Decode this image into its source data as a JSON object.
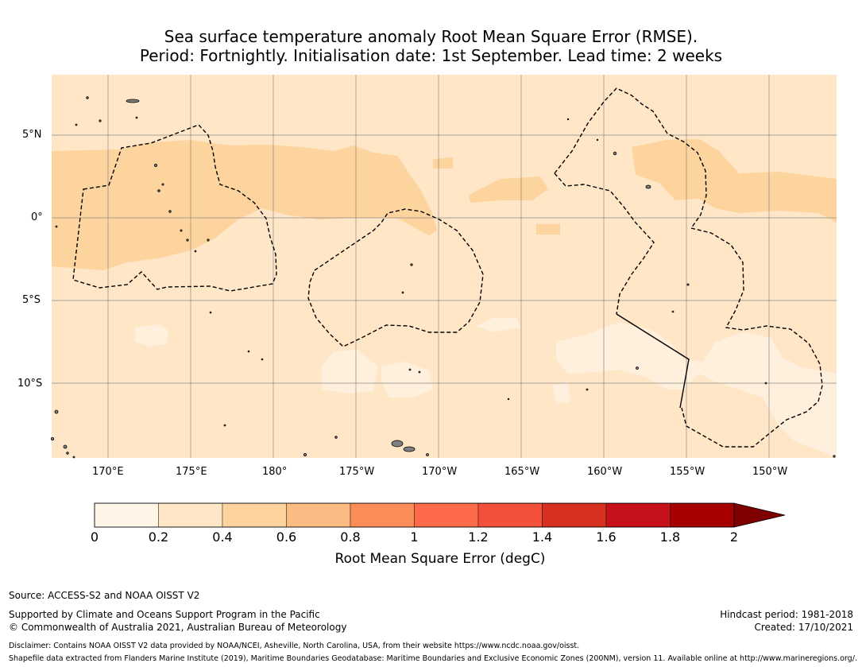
{
  "title": {
    "line1": "Sea surface temperature anomaly Root Mean Square Error (RMSE).",
    "line2": "Period: Fortnightly. Initialisation date: 1st September. Lead time: 2 weeks"
  },
  "map": {
    "lon_labels": [
      "170°E",
      "175°E",
      "180°",
      "175°W",
      "170°W",
      "165°W",
      "160°W",
      "155°W",
      "150°W"
    ],
    "lat_labels": [
      "5°N",
      "0°",
      "5°S",
      "10°S"
    ],
    "colors": {
      "bin_0_0.2": "#fff0de",
      "bin_0.2_0.4": "#fee6c6",
      "bin_0.4_0.6": "#fdd49e",
      "land": "#808080",
      "grid": "#8a8a8a"
    }
  },
  "colorbar": {
    "label": "Root Mean Square Error (degC)",
    "ticks": [
      "0",
      "0.2",
      "0.4",
      "0.6",
      "0.8",
      "1",
      "1.2",
      "1.4",
      "1.6",
      "1.8",
      "2"
    ],
    "colors": [
      "#fff5e6",
      "#fee6c6",
      "#fdd49e",
      "#fdbb84",
      "#fc8d59",
      "#fc6a4a",
      "#f2503b",
      "#d7301f",
      "#c7111a",
      "#a70000"
    ],
    "extend_color": "#7f0000"
  },
  "footer": {
    "source": "Source: ACCESS-S2 and NOAA OISST V2",
    "supported": "Supported by Climate and Oceans Support Program in the Pacific",
    "copyright": "© Commonwealth of Australia 2021, Australian Bureau of Meteorology",
    "hindcast": "Hindcast period: 1981-2018",
    "created": "Created: 17/10/2021",
    "disclaimer": "Disclaimer: Contains NOAA OISST V2 data provided by NOAA/NCEI, Asheville, North Carolina, USA, from their website https://www.ncdc.noaa.gov/oisst.",
    "shapefile": "Shapefile data extracted from Flanders Marine Institute (2019), Maritime Boundaries Geodatabase: Maritime Boundaries and Exclusive Economic Zones (200NM), version 11. Available online at http://www.marineregions.org/."
  }
}
